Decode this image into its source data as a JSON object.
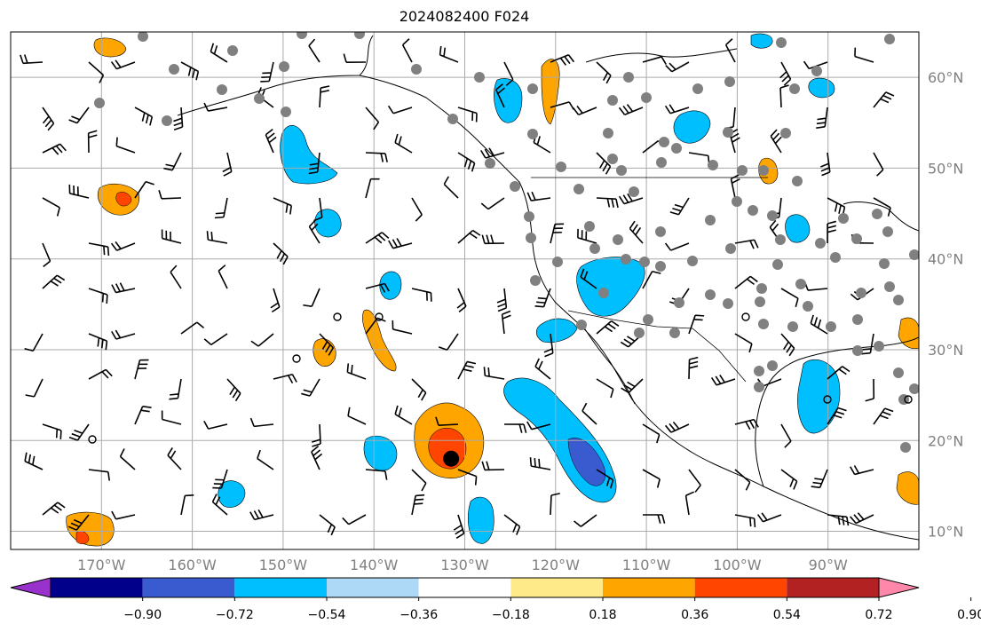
{
  "title": "2024082400 F024",
  "map": {
    "lon_range": [
      -180,
      -80
    ],
    "lat_range": [
      8,
      65
    ],
    "lat_labels": [
      "60°N",
      "50°N",
      "40°N",
      "30°N",
      "20°N",
      "10°N"
    ],
    "lat_values": [
      60,
      50,
      40,
      30,
      20,
      10
    ],
    "lon_labels": [
      "170°W",
      "160°W",
      "150°W",
      "140°W",
      "130°W",
      "120°W",
      "110°W",
      "100°W",
      "90°W"
    ],
    "lon_values": [
      -170,
      -160,
      -150,
      -140,
      -130,
      -120,
      -110,
      -100,
      -90
    ],
    "gridlines": true,
    "storm_center": {
      "lon": -131.5,
      "lat": 18
    }
  },
  "colorbar": {
    "labels": [
      "−0.90",
      "−0.72",
      "−0.54",
      "−0.36",
      "−0.18",
      "0.18",
      "0.36",
      "0.54",
      "0.72",
      "0.90"
    ],
    "values": [
      -0.9,
      -0.72,
      -0.54,
      -0.36,
      -0.18,
      0.18,
      0.36,
      0.54,
      0.72,
      0.9
    ],
    "colors": [
      "#9932CC",
      "#00008B",
      "#3A5BD0",
      "#00BFFF",
      "#ADD8F6",
      "#FFFFFF",
      "#FFEA8A",
      "#FFA500",
      "#FF4500",
      "#B22222",
      "#FF88AA"
    ]
  },
  "colors": {
    "gray_dot": "#808080",
    "grid": "#aaaaaa",
    "axis_text": "#808080"
  }
}
